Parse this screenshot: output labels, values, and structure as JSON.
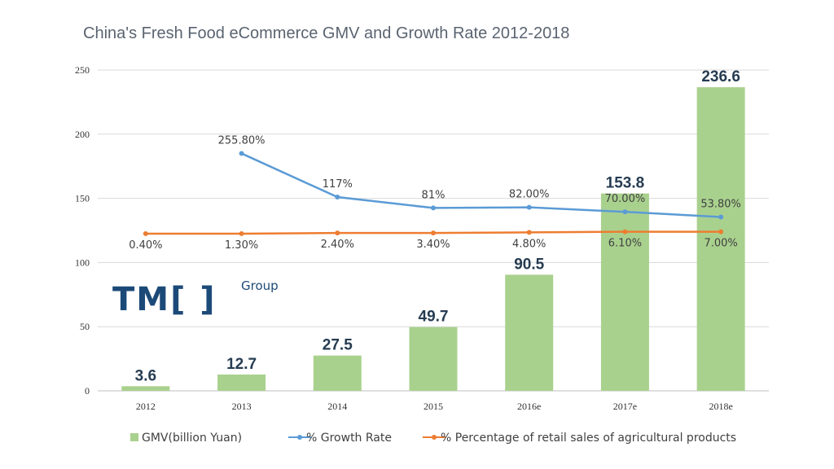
{
  "chart_data": {
    "type": "bar",
    "title": "China's Fresh Food eCommerce GMV and Growth Rate 2012-2018",
    "categories": [
      "2012",
      "2013",
      "2014",
      "2015",
      "2016e",
      "2017e",
      "2018e"
    ],
    "ylim": [
      0,
      250
    ],
    "yticks": [
      "0",
      "50",
      "100",
      "150",
      "200",
      "250"
    ],
    "ytick_values": [
      0,
      50,
      100,
      150,
      200,
      250
    ],
    "grid": true,
    "series": [
      {
        "name": "GMV(billion Yuan)",
        "type": "bar",
        "color": "#a9d18e",
        "values": [
          3.6,
          12.7,
          27.5,
          49.7,
          90.5,
          153.8,
          236.6
        ],
        "labels": [
          "3.6",
          "12.7",
          "27.5",
          "49.7",
          "90.5",
          "153.8",
          "236.6"
        ]
      },
      {
        "name": "% Growth Rate",
        "type": "line",
        "color": "#5b9bd5",
        "categories": [
          "2013",
          "2014",
          "2015",
          "2016e",
          "2017e",
          "2018e"
        ],
        "plot_values": [
          185,
          151,
          142.5,
          143,
          139.5,
          135.5
        ],
        "labels": [
          "255.80%",
          "117%",
          "81%",
          "82.00%",
          "70.00%",
          "53.80%"
        ]
      },
      {
        "name": "% Percentage of retail sales of agricultural products",
        "type": "line",
        "color": "#ed7d31",
        "categories": [
          "2012",
          "2013",
          "2014",
          "2015",
          "2016e",
          "2017e",
          "2018e"
        ],
        "plot_values": [
          122.5,
          122.5,
          123,
          123,
          123.5,
          124,
          124
        ],
        "labels": [
          "0.40%",
          "1.30%",
          "2.40%",
          "3.40%",
          "4.80%",
          "6.10%",
          "7.00%"
        ]
      }
    ],
    "legend": "bottom"
  },
  "logo": {
    "main": "TM[ ]",
    "sub": "Group"
  },
  "colors": {
    "grid": "#d9d9d9",
    "axis": "#bfbfbf",
    "logo": "#1c4a78"
  }
}
